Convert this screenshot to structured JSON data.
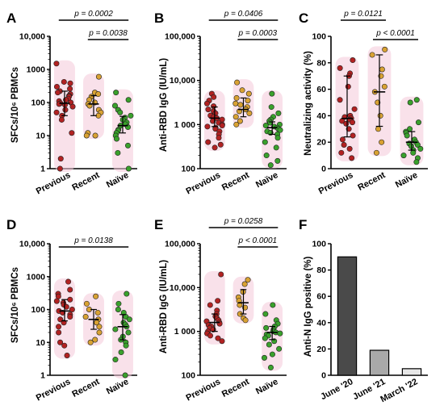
{
  "colors": {
    "previous": "#b22222",
    "recent": "#d9a233",
    "naive": "#3aa12c",
    "halo": "#f4c9d8",
    "bar_june20": "#4a4a4a",
    "bar_june21": "#a9a9a9",
    "bar_march22": "#e6e6e6"
  },
  "chart_data": [
    {
      "panel": "A",
      "type": "scatter",
      "log_scale": true,
      "categories": [
        "Previous",
        "Recent",
        "Naïve"
      ],
      "ylabel": "SFCs/10⁶ PBMCs",
      "ylim": [
        1,
        10000
      ],
      "yticks": [
        "1",
        "10",
        "100",
        "1000",
        "10,000"
      ],
      "points": [
        [
          1500,
          420,
          380,
          300,
          260,
          220,
          200,
          180,
          160,
          150,
          130,
          120,
          110,
          100,
          95,
          90,
          85,
          75,
          60,
          50,
          40,
          30,
          12,
          2,
          1
        ],
        [
          600,
          200,
          180,
          150,
          120,
          100,
          90,
          80,
          60,
          50,
          40,
          12,
          10,
          10
        ],
        [
          200,
          120,
          80,
          60,
          50,
          40,
          35,
          30,
          25,
          22,
          20,
          18,
          15,
          14,
          12,
          10,
          8,
          5,
          3,
          1
        ]
      ],
      "summary": [
        {
          "median": 95,
          "q1": 40,
          "q3": 220
        },
        {
          "median": 90,
          "q1": 40,
          "q3": 160
        },
        {
          "median": 20,
          "q1": 12,
          "q3": 38
        }
      ],
      "brackets": [
        {
          "from": 0,
          "to": 2,
          "label": "p = 0.0002",
          "level": 1
        },
        {
          "from": 1,
          "to": 2,
          "label": "p = 0.0038",
          "level": 0
        }
      ]
    },
    {
      "panel": "B",
      "type": "scatter",
      "log_scale": true,
      "categories": [
        "Previous",
        "Recent",
        "Naïve"
      ],
      "ylabel": "Anti-RBD IgG (IU/mL)",
      "ylim": [
        100,
        100000
      ],
      "yticks": [
        "100",
        "1 000",
        "10,000",
        "100,000"
      ],
      "points": [
        [
          5000,
          4200,
          3500,
          3000,
          2600,
          2200,
          2000,
          1800,
          1600,
          1500,
          1400,
          1300,
          1200,
          1100,
          1000,
          950,
          900,
          850,
          800,
          700,
          600,
          500,
          400,
          350,
          300
        ],
        [
          9000,
          6000,
          5000,
          4000,
          3500,
          3000,
          2800,
          2500,
          2200,
          2000,
          1800,
          1500,
          1200,
          1000
        ],
        [
          5000,
          2500,
          1800,
          1500,
          1300,
          1200,
          1100,
          1000,
          950,
          900,
          850,
          800,
          750,
          700,
          650,
          600,
          500,
          400,
          300,
          200,
          150,
          120
        ]
      ],
      "summary": [
        {
          "median": 1400,
          "q1": 900,
          "q3": 2500
        },
        {
          "median": 2200,
          "q1": 1500,
          "q3": 4000
        },
        {
          "median": 850,
          "q1": 600,
          "q3": 1150
        }
      ],
      "brackets": [
        {
          "from": 0,
          "to": 2,
          "label": "p = 0.0406",
          "level": 1
        },
        {
          "from": 1,
          "to": 2,
          "label": "p = 0.0003",
          "level": 0
        }
      ]
    },
    {
      "panel": "C",
      "type": "scatter",
      "log_scale": false,
      "categories": [
        "Previous",
        "Recent",
        "Naïve"
      ],
      "ylabel": "Neutralizing activity (%)",
      "ylim": [
        0,
        100
      ],
      "yticks": [
        "0",
        "20",
        "40",
        "60",
        "80",
        "100"
      ],
      "points": [
        [
          82,
          76,
          72,
          70,
          62,
          52,
          45,
          40,
          39,
          38,
          37,
          36,
          35,
          34,
          30,
          25,
          22,
          18,
          15,
          12,
          8
        ],
        [
          90,
          86,
          75,
          70,
          62,
          58,
          50,
          40,
          30,
          20,
          12
        ],
        [
          52,
          50,
          35,
          30,
          28,
          27,
          25,
          22,
          20,
          19,
          18,
          17,
          15,
          14,
          12,
          10,
          8,
          5
        ]
      ],
      "summary": [
        {
          "median": 38,
          "q1": 24,
          "q3": 70
        },
        {
          "median": 58,
          "q1": 32,
          "q3": 86
        },
        {
          "median": 20,
          "q1": 14,
          "q3": 28
        }
      ],
      "brackets": [
        {
          "from": 0,
          "to": 1,
          "label": "p = 0.0121",
          "level": 1
        },
        {
          "from": 1,
          "to": 2,
          "label": "p < 0.0001",
          "level": 0
        }
      ]
    },
    {
      "panel": "D",
      "type": "scatter",
      "log_scale": true,
      "categories": [
        "Previous",
        "Recent",
        "Naïve"
      ],
      "ylabel": "SFCs/10⁶ PBMCs",
      "ylim": [
        1,
        10000
      ],
      "yticks": [
        "1",
        "10",
        "100",
        "1000",
        "10,000"
      ],
      "points": [
        [
          700,
          400,
          300,
          250,
          200,
          180,
          160,
          140,
          120,
          100,
          90,
          80,
          70,
          60,
          50,
          40,
          30,
          20,
          10,
          8,
          4
        ],
        [
          250,
          150,
          100,
          80,
          60,
          50,
          40,
          30,
          20,
          12,
          10
        ],
        [
          300,
          150,
          100,
          80,
          60,
          50,
          40,
          35,
          30,
          25,
          20,
          15,
          12,
          10,
          8,
          5,
          3,
          1
        ]
      ],
      "summary": [
        {
          "median": 90,
          "q1": 45,
          "q3": 200
        },
        {
          "median": 50,
          "q1": 25,
          "q3": 100
        },
        {
          "median": 30,
          "q1": 12,
          "q3": 70
        }
      ],
      "brackets": [
        {
          "from": 0,
          "to": 2,
          "label": "p = 0.0138",
          "level": 0
        }
      ]
    },
    {
      "panel": "E",
      "type": "scatter",
      "log_scale": true,
      "categories": [
        "Previous",
        "Recent",
        "Naïve"
      ],
      "ylabel": "Anti-RBD IgG (IU/mL)",
      "ylim": [
        100,
        100000
      ],
      "yticks": [
        "100",
        "1 000",
        "10,000",
        "100,000"
      ],
      "points": [
        [
          20000,
          5000,
          4000,
          3000,
          2500,
          2200,
          2000,
          1800,
          1700,
          1600,
          1500,
          1400,
          1300,
          1200,
          1100,
          1000,
          900,
          800,
          700,
          600
        ],
        [
          15000,
          12000,
          8000,
          6000,
          5000,
          4000,
          3500,
          2500,
          2000,
          1800
        ],
        [
          4000,
          2500,
          1800,
          1500,
          1300,
          1200,
          1100,
          1000,
          950,
          900,
          850,
          800,
          700,
          600,
          500,
          400,
          300,
          250,
          150
        ]
      ],
      "summary": [
        {
          "median": 1600,
          "q1": 1000,
          "q3": 2500
        },
        {
          "median": 4500,
          "q1": 2500,
          "q3": 9000
        },
        {
          "median": 950,
          "q1": 650,
          "q3": 1300
        }
      ],
      "brackets": [
        {
          "from": 0,
          "to": 2,
          "label": "p = 0.0258",
          "level": 1
        },
        {
          "from": 1,
          "to": 2,
          "label": "p < 0.0001",
          "level": 0
        }
      ]
    },
    {
      "panel": "F",
      "type": "bar",
      "log_scale": false,
      "categories": [
        "June '20",
        "June '21",
        "March '22"
      ],
      "values": [
        90,
        19,
        5
      ],
      "ylabel": "Anti-N IgG positive (%)",
      "ylim": [
        0,
        100
      ],
      "yticks": [
        "0",
        "20",
        "40",
        "60",
        "80",
        "100"
      ]
    }
  ]
}
